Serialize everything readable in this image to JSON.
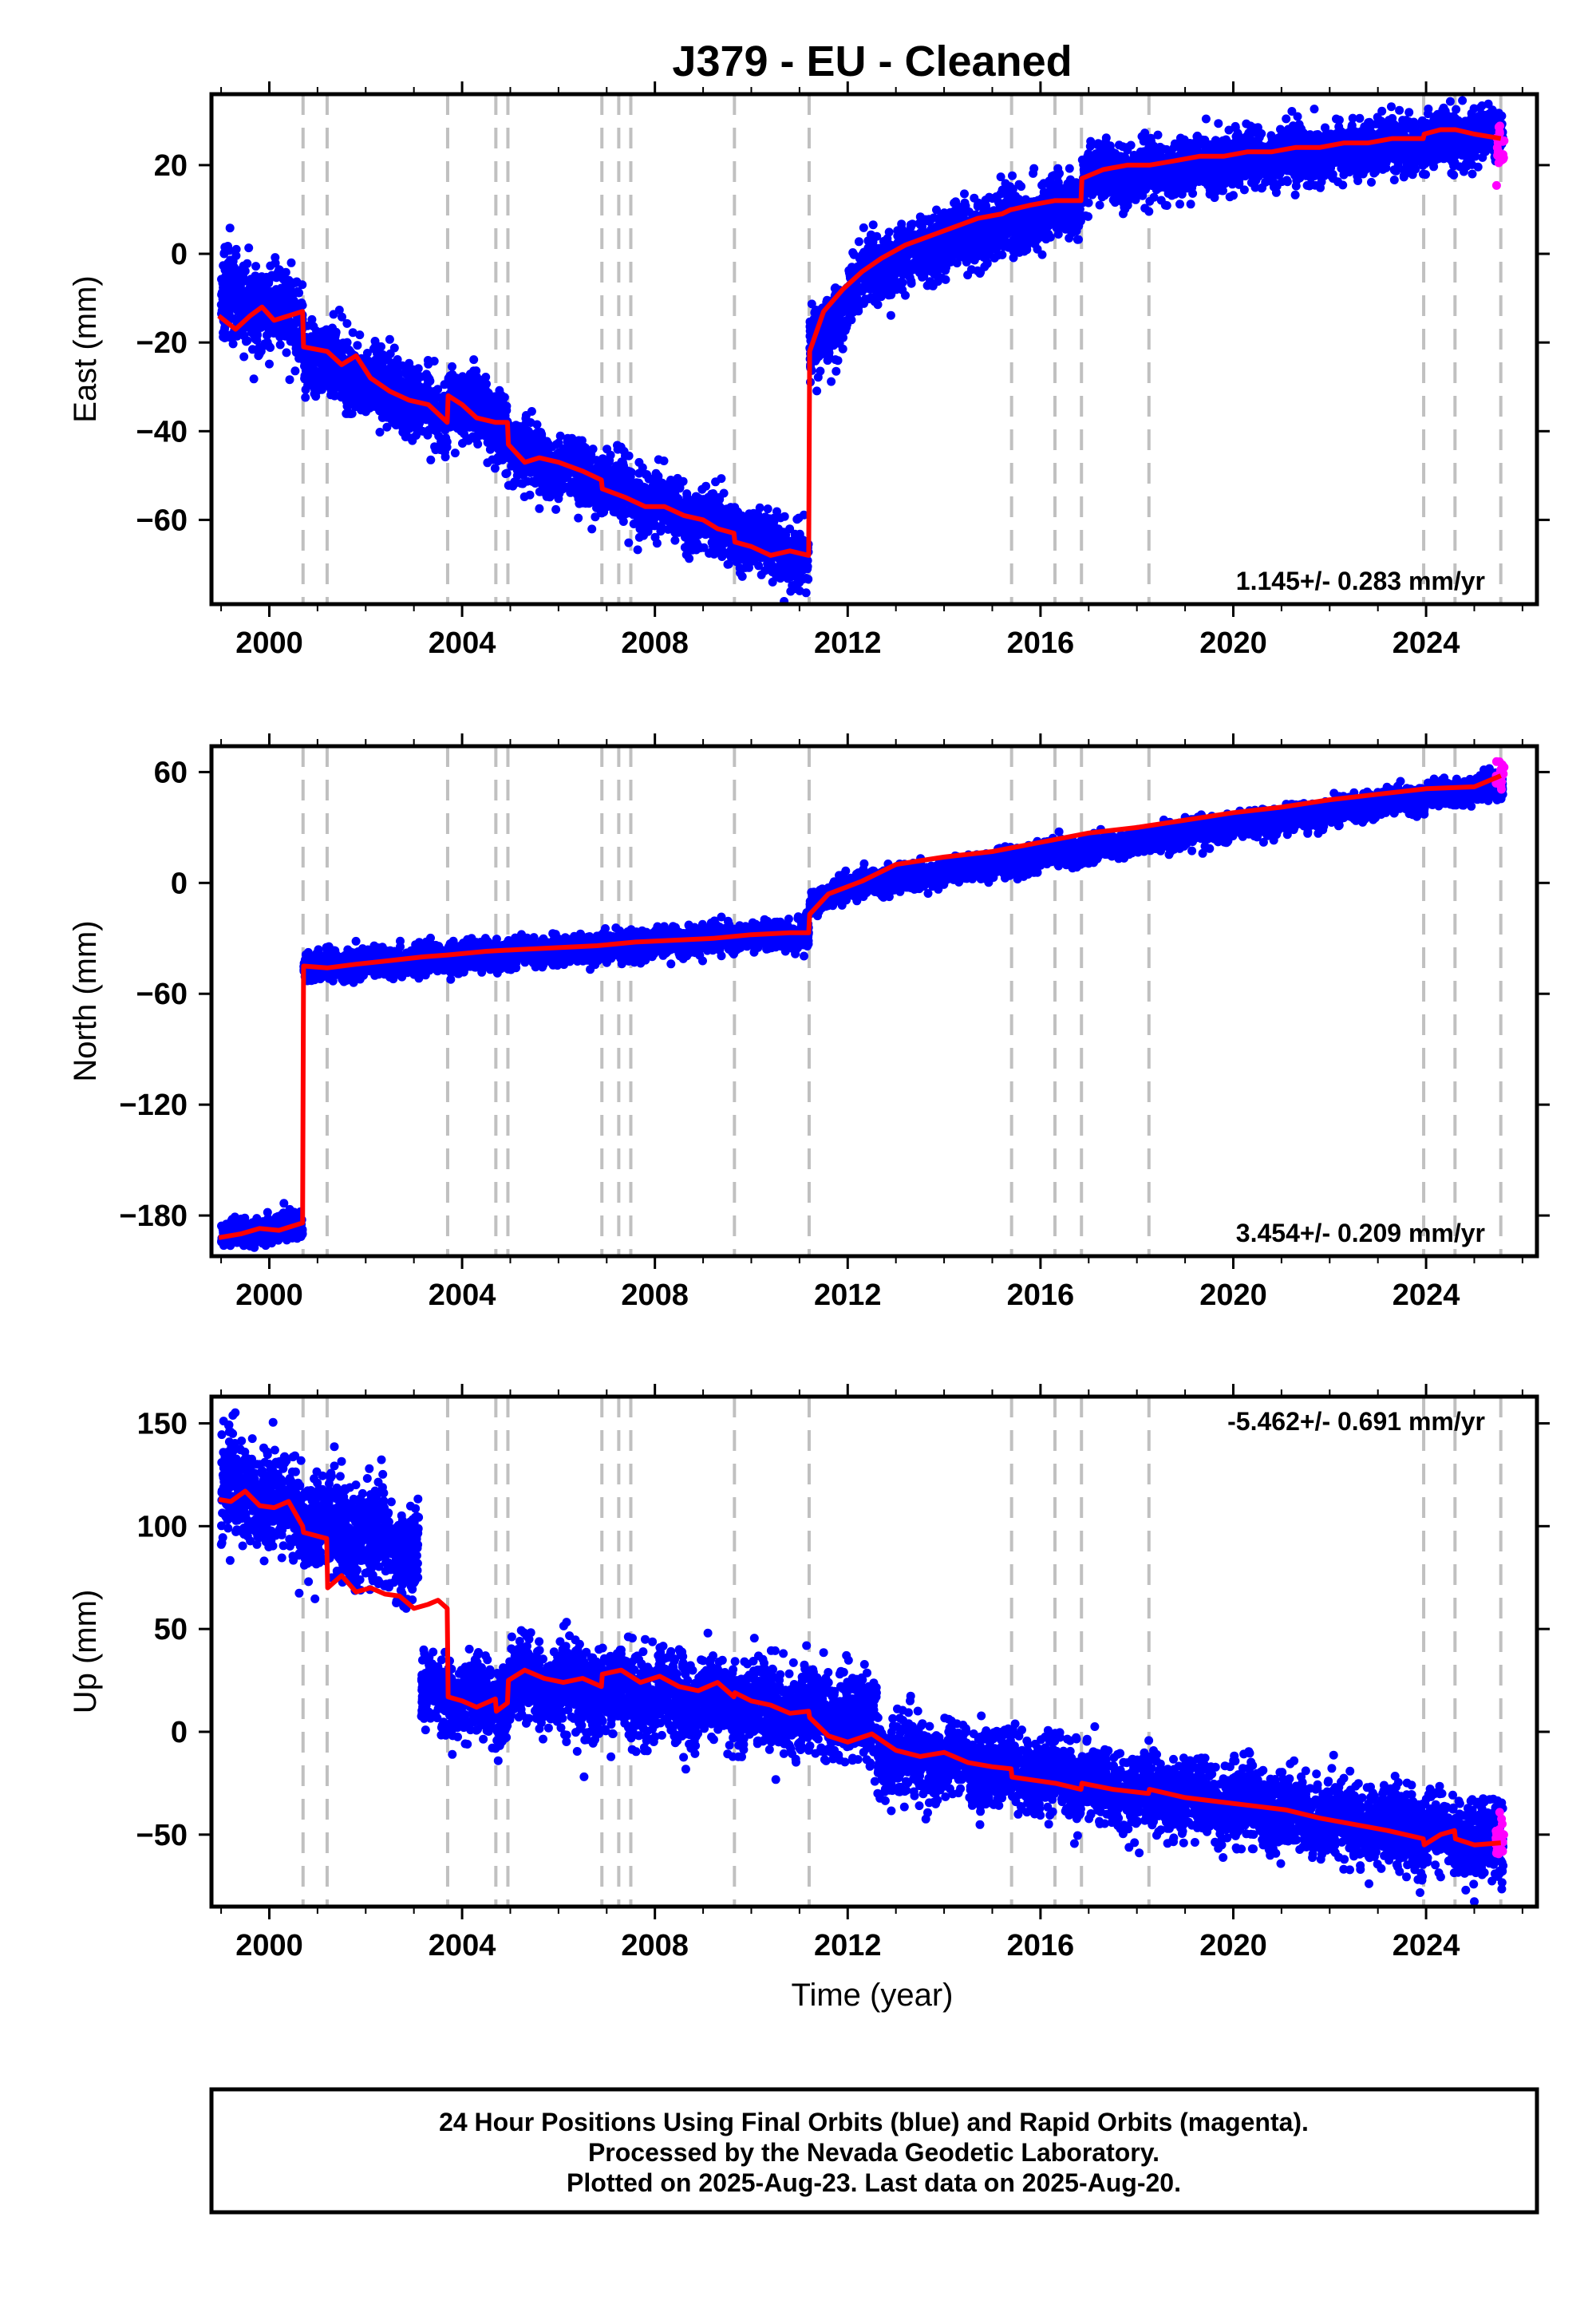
{
  "title": "J379  - EU - Cleaned",
  "xlabel": "Time (year)",
  "footer": {
    "lines": [
      "24 Hour Positions Using Final Orbits (blue) and Rapid Orbits (magenta).",
      "Processed by the Nevada Geodetic Laboratory.",
      "Plotted on 2025-Aug-23. Last data on 2025-Aug-20."
    ]
  },
  "colors": {
    "final_orbits": "#0000ff",
    "rapid_orbits": "#ff00ff",
    "model": "#ff0000",
    "event_lines": "#c0c0c0",
    "frame": "#000000"
  },
  "chart_data": [
    {
      "type": "scatter",
      "ylabel": "East (mm)",
      "xlim": [
        1998.8,
        2026.3
      ],
      "ylim": [
        -79,
        36
      ],
      "xticks": [
        2000,
        2004,
        2008,
        2012,
        2016,
        2020,
        2024
      ],
      "yticks": [
        -60,
        -40,
        -20,
        0,
        20
      ],
      "rate_text": "1.145+/- 0.283 mm/yr",
      "rate_position": "bottom-right",
      "event_lines": [
        2000.7,
        2001.2,
        2003.7,
        2004.7,
        2004.95,
        2006.9,
        2007.25,
        2007.5,
        2009.65,
        2011.2,
        2015.4,
        2016.3,
        2016.85,
        2018.25,
        2023.95,
        2024.6,
        2025.55
      ],
      "model_line": {
        "x": [
          1998.95,
          1999.3,
          1999.6,
          1999.85,
          2000.1,
          2000.4,
          2000.69,
          2000.71,
          2001.2,
          2001.5,
          2001.8,
          2002.1,
          2002.5,
          2002.9,
          2003.3,
          2003.69,
          2003.71,
          2004.0,
          2004.3,
          2004.69,
          2004.71,
          2004.94,
          2004.96,
          2005.3,
          2005.6,
          2006.0,
          2006.5,
          2006.89,
          2006.91,
          2007.4,
          2007.8,
          2008.2,
          2008.6,
          2009.0,
          2009.3,
          2009.64,
          2009.66,
          2010.0,
          2010.4,
          2010.8,
          2011.19,
          2011.21,
          2011.5,
          2011.9,
          2012.3,
          2012.7,
          2013.2,
          2013.7,
          2014.2,
          2014.7,
          2015.2,
          2015.39,
          2015.41,
          2015.8,
          2016.29,
          2016.31,
          2016.84,
          2016.86,
          2017.3,
          2017.8,
          2018.24,
          2018.26,
          2018.8,
          2019.3,
          2019.8,
          2020.3,
          2020.8,
          2021.3,
          2021.8,
          2022.3,
          2022.8,
          2023.3,
          2023.94,
          2023.96,
          2024.3,
          2024.59,
          2024.61,
          2025.0,
          2025.55
        ],
        "y": [
          -14,
          -17,
          -14,
          -12,
          -15,
          -14,
          -13,
          -21,
          -22,
          -25,
          -23,
          -28,
          -31,
          -33,
          -34,
          -38,
          -32,
          -34,
          -37,
          -38,
          -38,
          -38,
          -43,
          -47,
          -46,
          -47,
          -49,
          -51,
          -53,
          -55,
          -57,
          -57,
          -59,
          -60,
          -62,
          -63,
          -65,
          -66,
          -68,
          -67,
          -68,
          -22,
          -13,
          -8,
          -4,
          -1,
          2,
          4,
          6,
          8,
          9,
          10,
          10,
          11,
          12,
          12,
          12,
          17,
          19,
          20,
          20,
          20,
          21,
          22,
          22,
          23,
          23,
          24,
          24,
          25,
          25,
          26,
          26,
          27,
          28,
          28,
          28,
          27,
          26
        ]
      },
      "scatter_segments": [
        {
          "x0": 1999.0,
          "x1": 2000.69,
          "y0": -10,
          "y1": -14,
          "spread": 4.5
        },
        {
          "x0": 2000.71,
          "x1": 2003.69,
          "y0": -22,
          "y1": -37,
          "spread": 4.0
        },
        {
          "x0": 2003.71,
          "x1": 2004.94,
          "y0": -32,
          "y1": -39,
          "spread": 4.0
        },
        {
          "x0": 2004.96,
          "x1": 2011.19,
          "y0": -44,
          "y1": -69,
          "spread": 3.5
        },
        {
          "x0": 2011.21,
          "x1": 2012.5,
          "y0": -22,
          "y1": -3,
          "spread": 3.5
        },
        {
          "x0": 2012.5,
          "x1": 2016.84,
          "y0": -3,
          "y1": 12,
          "spread": 3.5
        },
        {
          "x0": 2016.86,
          "x1": 2025.6,
          "y0": 17,
          "y1": 27,
          "spread": 3.0
        }
      ],
      "rapid_points": {
        "x0": 2025.45,
        "x1": 2025.62,
        "y0": 24,
        "y1": 24,
        "spread": 3.5
      }
    },
    {
      "type": "scatter",
      "ylabel": "North (mm)",
      "xlim": [
        1998.8,
        2026.3
      ],
      "ylim": [
        -202,
        74
      ],
      "xticks": [
        2000,
        2004,
        2008,
        2012,
        2016,
        2020,
        2024
      ],
      "yticks": [
        -180,
        -120,
        -60,
        0,
        60
      ],
      "rate_text": "3.454+/- 0.209 mm/yr",
      "rate_position": "bottom-right",
      "event_lines": [
        2000.7,
        2001.2,
        2003.7,
        2004.7,
        2004.95,
        2006.9,
        2007.25,
        2007.5,
        2009.65,
        2011.2,
        2015.4,
        2016.3,
        2016.85,
        2018.25,
        2023.95,
        2024.6,
        2025.55
      ],
      "model_line": {
        "x": [
          1998.95,
          1999.4,
          1999.8,
          2000.2,
          2000.69,
          2000.71,
          2001.2,
          2001.8,
          2002.5,
          2003.2,
          2003.7,
          2004.5,
          2005.2,
          2006.0,
          2006.8,
          2007.6,
          2008.4,
          2009.2,
          2010.0,
          2010.8,
          2011.19,
          2011.21,
          2011.6,
          2012.3,
          2013.0,
          2014.0,
          2015.0,
          2016.0,
          2017.0,
          2018.0,
          2019.0,
          2020.0,
          2021.0,
          2022.0,
          2023.0,
          2024.0,
          2025.0,
          2025.55
        ],
        "y": [
          -192,
          -190,
          -187,
          -188,
          -184,
          -45,
          -46,
          -44,
          -42,
          -40,
          -39,
          -37,
          -36,
          -35,
          -34,
          -32,
          -31,
          -30,
          -28,
          -27,
          -27,
          -17,
          -6,
          1,
          10,
          14,
          17,
          22,
          27,
          30,
          34,
          38,
          41,
          45,
          48,
          51,
          52,
          58
        ]
      },
      "scatter_segments": [
        {
          "x0": 1999.0,
          "x1": 2000.69,
          "y0": -191,
          "y1": -185,
          "spread": 3.5
        },
        {
          "x0": 2000.71,
          "x1": 2011.19,
          "y0": -46,
          "y1": -27,
          "spread": 3.5
        },
        {
          "x0": 2011.21,
          "x1": 2011.8,
          "y0": -13,
          "y1": -3,
          "spread": 3.0
        },
        {
          "x0": 2011.8,
          "x1": 2025.6,
          "y0": -3,
          "y1": 53,
          "spread": 3.2
        }
      ],
      "rapid_points": {
        "x0": 2025.45,
        "x1": 2025.62,
        "y0": 58,
        "y1": 58,
        "spread": 3.5
      }
    },
    {
      "type": "scatter",
      "ylabel": "Up (mm)",
      "xlim": [
        1998.8,
        2026.3
      ],
      "ylim": [
        -85,
        163
      ],
      "xticks": [
        2000,
        2004,
        2008,
        2012,
        2016,
        2020,
        2024
      ],
      "yticks": [
        -50,
        0,
        50,
        100,
        150
      ],
      "rate_text": "-5.462+/- 0.691 mm/yr",
      "rate_position": "top-right",
      "event_lines": [
        2000.7,
        2001.2,
        2003.7,
        2004.7,
        2004.95,
        2006.9,
        2007.25,
        2007.5,
        2009.65,
        2011.2,
        2015.4,
        2016.3,
        2016.85,
        2018.25,
        2023.95,
        2024.6,
        2025.55
      ],
      "model_line": {
        "x": [
          1998.95,
          1999.2,
          1999.5,
          1999.8,
          2000.1,
          2000.4,
          2000.69,
          2000.71,
          2001.19,
          2001.21,
          2001.5,
          2001.8,
          2002.1,
          2002.4,
          2002.7,
          2003.0,
          2003.3,
          2003.5,
          2003.69,
          2003.71,
          2004.0,
          2004.3,
          2004.69,
          2004.71,
          2004.94,
          2004.96,
          2005.3,
          2005.7,
          2006.1,
          2006.5,
          2006.89,
          2006.91,
          2007.3,
          2007.7,
          2008.1,
          2008.5,
          2008.9,
          2009.3,
          2009.64,
          2009.66,
          2010.0,
          2010.4,
          2010.8,
          2011.19,
          2011.21,
          2011.6,
          2012.0,
          2012.5,
          2013.0,
          2013.5,
          2014.0,
          2014.5,
          2015.0,
          2015.39,
          2015.41,
          2016.0,
          2016.29,
          2016.31,
          2016.84,
          2016.86,
          2017.5,
          2018.24,
          2018.26,
          2019.0,
          2019.7,
          2020.4,
          2021.1,
          2021.8,
          2022.5,
          2023.2,
          2023.94,
          2023.96,
          2024.3,
          2024.59,
          2024.61,
          2025.0,
          2025.55
        ],
        "y": [
          113,
          112,
          117,
          110,
          109,
          112,
          100,
          97,
          94,
          70,
          76,
          68,
          70,
          67,
          66,
          60,
          62,
          64,
          60,
          17,
          15,
          12,
          16,
          10,
          14,
          25,
          30,
          26,
          24,
          26,
          22,
          28,
          30,
          24,
          27,
          22,
          20,
          24,
          17,
          19,
          15,
          13,
          9,
          10,
          7,
          -2,
          -5,
          -1,
          -9,
          -12,
          -10,
          -15,
          -17,
          -18,
          -22,
          -24,
          -25,
          -25,
          -28,
          -25,
          -28,
          -30,
          -28,
          -32,
          -34,
          -36,
          -38,
          -42,
          -45,
          -48,
          -52,
          -55,
          -50,
          -48,
          -52,
          -55,
          -54
        ]
      },
      "scatter_segments": [
        {
          "x0": 1999.0,
          "x1": 2000.69,
          "y0": 118,
          "y1": 108,
          "spread": 12
        },
        {
          "x0": 2000.71,
          "x1": 2003.1,
          "y0": 102,
          "y1": 88,
          "spread": 12
        },
        {
          "x0": 2003.15,
          "x1": 2004.94,
          "y0": 18,
          "y1": 14,
          "spread": 9
        },
        {
          "x0": 2004.96,
          "x1": 2012.6,
          "y0": 25,
          "y1": 6,
          "spread": 10
        },
        {
          "x0": 2012.6,
          "x1": 2025.6,
          "y0": -10,
          "y1": -55,
          "spread": 9
        }
      ],
      "rapid_points": {
        "x0": 2025.45,
        "x1": 2025.62,
        "y0": -52,
        "y1": -52,
        "spread": 5
      }
    }
  ]
}
